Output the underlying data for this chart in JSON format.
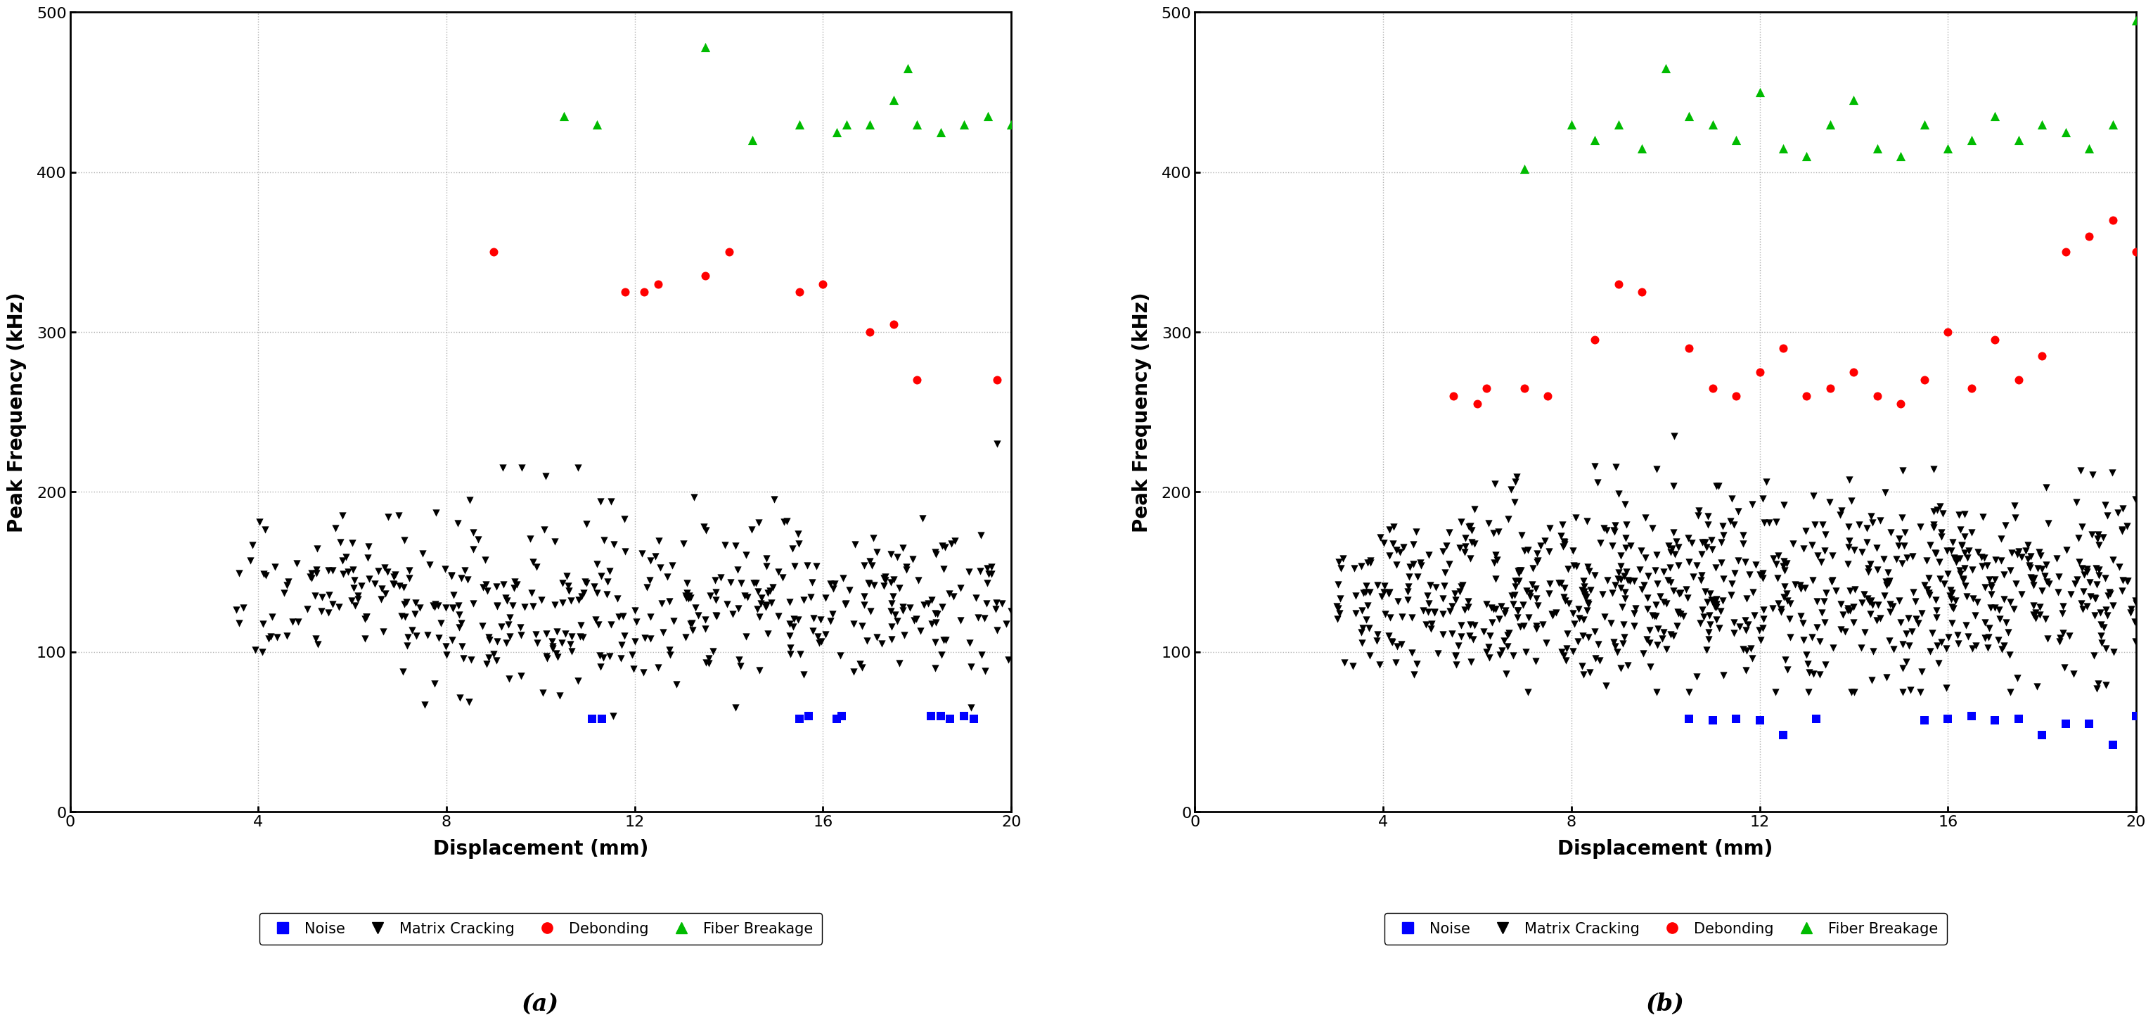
{
  "title_a": "(a)",
  "title_b": "(b)",
  "xlabel": "Displacement (mm)",
  "ylabel": "Peak Frequency (kHz)",
  "xlim": [
    0,
    20
  ],
  "ylim": [
    0,
    500
  ],
  "xticks": [
    0,
    4,
    8,
    12,
    16,
    20
  ],
  "yticks": [
    0,
    100,
    200,
    300,
    400,
    500
  ],
  "background_color": "#ffffff",
  "grid_color": "#b0b0b0",
  "legend_labels": [
    "Noise",
    "Matrix Cracking",
    "Debonding",
    "Fiber Breakage"
  ],
  "legend_colors": [
    "#0000ff",
    "#000000",
    "#ff0000",
    "#00cc00"
  ],
  "legend_markers": [
    "s",
    "v",
    "o",
    "^"
  ]
}
